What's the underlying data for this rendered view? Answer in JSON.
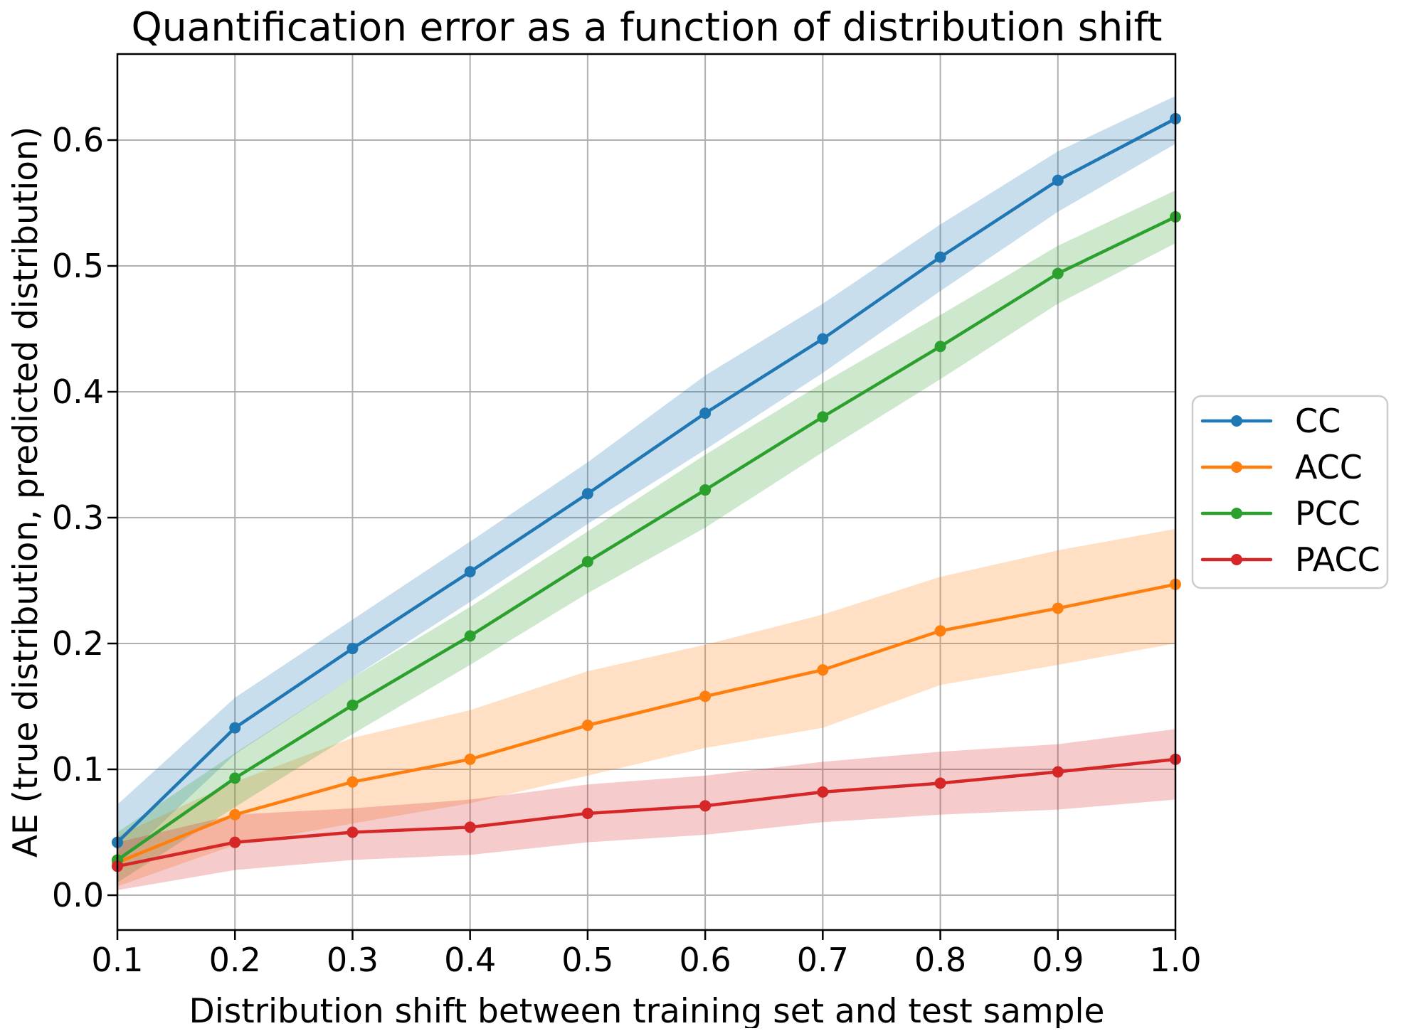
{
  "chart_data": {
    "type": "line",
    "title": "Quantification error as a function of distribution shift",
    "xlabel": "Distribution shift between training set and test sample",
    "ylabel": "AE (true distribution, predicted distribution)",
    "x": [
      0.1,
      0.2,
      0.3,
      0.4,
      0.5,
      0.6,
      0.7,
      0.8,
      0.9,
      1.0
    ],
    "xtick_labels": [
      "0.1",
      "0.2",
      "0.3",
      "0.4",
      "0.5",
      "0.6",
      "0.7",
      "0.8",
      "0.9",
      "1.0"
    ],
    "ytick_values": [
      0.0,
      0.1,
      0.2,
      0.3,
      0.4,
      0.5,
      0.6
    ],
    "ytick_labels": [
      "0.0",
      "0.1",
      "0.2",
      "0.3",
      "0.4",
      "0.5",
      "0.6"
    ],
    "xlim": [
      0.1,
      1.0
    ],
    "ylim": [
      -0.028,
      0.668
    ],
    "grid": true,
    "legend_position": "outside-right",
    "band_alpha": 0.24,
    "series": [
      {
        "name": "CC",
        "color": "#1f77b4",
        "values": [
          0.042,
          0.133,
          0.196,
          0.257,
          0.319,
          0.383,
          0.442,
          0.507,
          0.568,
          0.617
        ],
        "band_lower": [
          0.024,
          0.112,
          0.173,
          0.233,
          0.295,
          0.354,
          0.415,
          0.48,
          0.543,
          0.597
        ],
        "band_upper": [
          0.072,
          0.157,
          0.219,
          0.281,
          0.344,
          0.413,
          0.47,
          0.533,
          0.591,
          0.635
        ]
      },
      {
        "name": "ACC",
        "color": "#ff7f0e",
        "values": [
          0.026,
          0.064,
          0.09,
          0.108,
          0.135,
          0.158,
          0.179,
          0.21,
          0.228,
          0.247
        ],
        "band_lower": [
          0.007,
          0.04,
          0.057,
          0.073,
          0.095,
          0.117,
          0.133,
          0.167,
          0.183,
          0.2
        ],
        "band_upper": [
          0.047,
          0.09,
          0.125,
          0.147,
          0.178,
          0.199,
          0.223,
          0.253,
          0.274,
          0.291
        ]
      },
      {
        "name": "PCC",
        "color": "#2ca02c",
        "values": [
          0.028,
          0.093,
          0.151,
          0.206,
          0.265,
          0.322,
          0.38,
          0.436,
          0.494,
          0.539
        ],
        "band_lower": [
          0.01,
          0.07,
          0.128,
          0.183,
          0.24,
          0.292,
          0.352,
          0.41,
          0.47,
          0.518
        ],
        "band_upper": [
          0.05,
          0.113,
          0.173,
          0.229,
          0.289,
          0.35,
          0.407,
          0.461,
          0.516,
          0.56
        ]
      },
      {
        "name": "PACC",
        "color": "#d62728",
        "values": [
          0.023,
          0.042,
          0.05,
          0.054,
          0.065,
          0.071,
          0.082,
          0.089,
          0.098,
          0.108
        ],
        "band_lower": [
          0.004,
          0.02,
          0.028,
          0.032,
          0.042,
          0.048,
          0.058,
          0.064,
          0.068,
          0.076
        ],
        "band_upper": [
          0.042,
          0.064,
          0.069,
          0.076,
          0.088,
          0.095,
          0.106,
          0.114,
          0.12,
          0.132
        ]
      }
    ],
    "colors": {
      "grid": "#b0b0b0",
      "spine": "#000000",
      "background": "#ffffff",
      "legend_border": "#cccccc",
      "text": "#000000"
    }
  }
}
